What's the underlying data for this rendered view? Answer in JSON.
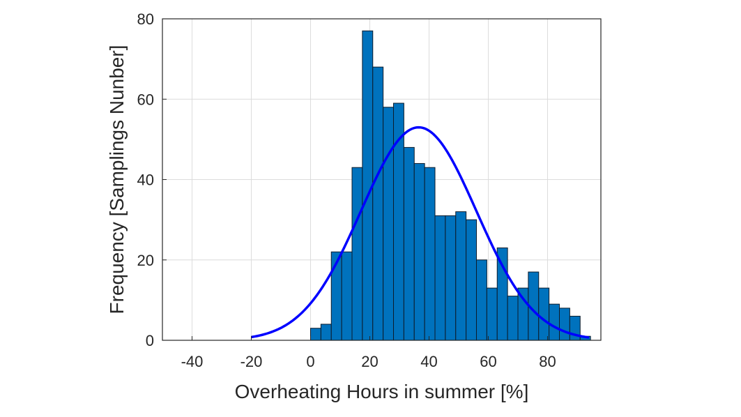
{
  "chart_data": {
    "type": "bar",
    "xlabel": "Overheating Hours in summer [%]",
    "ylabel": "Frequency [Samplings Nunber]",
    "xlim": [
      -50,
      98
    ],
    "ylim": [
      0,
      80
    ],
    "xticks": [
      -40,
      -20,
      0,
      20,
      40,
      60,
      80
    ],
    "yticks": [
      0,
      20,
      40,
      60,
      80
    ],
    "grid": true,
    "bin_width": 3.5,
    "bin_edges": [
      0.0,
      3.5,
      7.0,
      10.5,
      14.0,
      17.5,
      21.0,
      24.5,
      28.0,
      31.5,
      35.0,
      38.5,
      42.0,
      45.5,
      49.0,
      52.5,
      56.0,
      59.5,
      63.0,
      66.5,
      70.0,
      73.5,
      77.0,
      80.5,
      84.0,
      87.5,
      91.0,
      94.5
    ],
    "values": [
      3,
      4,
      22,
      22,
      43,
      77,
      68,
      58,
      59,
      48,
      44,
      43,
      31,
      31,
      32,
      30,
      20,
      13,
      23,
      11,
      13,
      17,
      13,
      9,
      8,
      6,
      1
    ],
    "bar_color": "#0072BD",
    "fit_curve": {
      "type": "normal",
      "mean": 36.5,
      "peak": 53,
      "sigma": 19.5,
      "x_range": [
        -20,
        94
      ],
      "color": "#0000FF"
    }
  }
}
